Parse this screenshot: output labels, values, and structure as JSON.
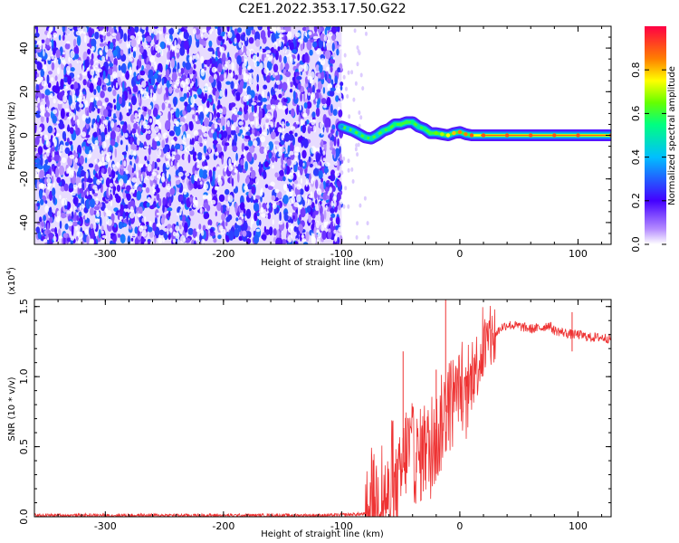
{
  "title": "C2E1.2022.353.17.50.G22",
  "chart_data": [
    {
      "type": "heatmap",
      "panel": "spectrogram",
      "xlabel": "Height of straight line (km)",
      "ylabel": "Frequency (Hz)",
      "xlim": [
        -360,
        128
      ],
      "ylim": [
        -50,
        50
      ],
      "xticks": [
        -300,
        -200,
        -100,
        0,
        100
      ],
      "xtick_labels": [
        "-300",
        "-200",
        "-100",
        "0",
        "100"
      ],
      "yticks": [
        -40,
        -20,
        0,
        20,
        40
      ],
      "ytick_labels": [
        "-40",
        "-20",
        "0",
        "20",
        "40"
      ],
      "noise_region_x": [
        -360,
        -100
      ],
      "colorbar": {
        "label": "Normalized spectral amplitude",
        "range": [
          0,
          1
        ],
        "ticks": [
          0.0,
          0.2,
          0.4,
          0.6,
          0.8
        ],
        "tick_labels": [
          "0.0",
          "0.2",
          "0.4",
          "0.6",
          "0.8"
        ]
      },
      "ridge": {
        "name": "",
        "x": [
          -100,
          -95,
          -90,
          -85,
          -80,
          -75,
          -70,
          -65,
          -60,
          -55,
          -50,
          -45,
          -40,
          -35,
          -30,
          -25,
          -20,
          -15,
          -10,
          -5,
          0,
          5,
          10,
          20,
          40,
          60,
          80,
          100,
          128
        ],
        "y": [
          4,
          3,
          2,
          0.5,
          -1,
          -1.5,
          0,
          2,
          3,
          5,
          5,
          6,
          6,
          4,
          3,
          1,
          1,
          0.5,
          0,
          1,
          1.5,
          0.5,
          0,
          0,
          0,
          0,
          0,
          0,
          0
        ],
        "amplitude": [
          0.35,
          0.4,
          0.45,
          0.45,
          0.5,
          0.5,
          0.45,
          0.5,
          0.55,
          0.55,
          0.6,
          0.6,
          0.55,
          0.5,
          0.55,
          0.6,
          0.65,
          0.7,
          0.75,
          0.8,
          0.85,
          0.85,
          0.9,
          0.9,
          0.9,
          0.9,
          0.9,
          0.9,
          0.9
        ]
      }
    },
    {
      "type": "line",
      "panel": "snr",
      "xlabel": "Height of straight line (km)",
      "ylabel": "SNR (10 * v/v)",
      "scale_note": "(x10",
      "scale_exponent": "4",
      "scale_close": ")",
      "xlim": [
        -360,
        128
      ],
      "ylim": [
        0,
        1.55
      ],
      "xticks": [
        -300,
        -200,
        -100,
        0,
        100
      ],
      "xtick_labels": [
        "-300",
        "-200",
        "-100",
        "0",
        "100"
      ],
      "yticks": [
        0,
        0.5,
        1.0,
        1.5
      ],
      "ytick_labels": [
        "0.0",
        "0.5",
        "1.0",
        "1.5"
      ],
      "color": "#ee3333",
      "series": [
        {
          "name": "",
          "x": [
            -360,
            -300,
            -200,
            -110,
            -80,
            -72,
            -65,
            -58,
            -52,
            -48,
            -45,
            -40,
            -35,
            -30,
            -25,
            -20,
            -17,
            -15,
            -12,
            -8,
            -5,
            -2,
            0,
            5,
            10,
            15,
            20,
            25,
            30,
            35,
            40,
            50,
            60,
            70,
            75,
            80,
            90,
            95,
            100,
            110,
            120,
            128
          ],
          "y": [
            0.01,
            0.01,
            0.01,
            0.01,
            0.02,
            0.12,
            0.15,
            0.1,
            0.2,
            0.35,
            0.5,
            0.45,
            0.4,
            0.5,
            0.45,
            0.55,
            0.6,
            0.7,
            0.75,
            0.8,
            0.85,
            0.9,
            0.95,
            0.75,
            1.0,
            1.1,
            1.2,
            1.25,
            1.3,
            1.35,
            1.37,
            1.36,
            1.34,
            1.35,
            1.37,
            1.33,
            1.31,
            1.3,
            1.3,
            1.28,
            1.28,
            1.27
          ]
        }
      ],
      "annotations": [
        {
          "x": -48,
          "y": 1.18,
          "note": "spike"
        },
        {
          "x": -20,
          "y": 1.05,
          "note": "spike"
        },
        {
          "x": -12,
          "y": 1.55,
          "note": "spike"
        },
        {
          "x": 95,
          "y": 1.46,
          "note": "spike"
        },
        {
          "x": 95,
          "y": 1.18,
          "note": "dip"
        }
      ]
    }
  ]
}
